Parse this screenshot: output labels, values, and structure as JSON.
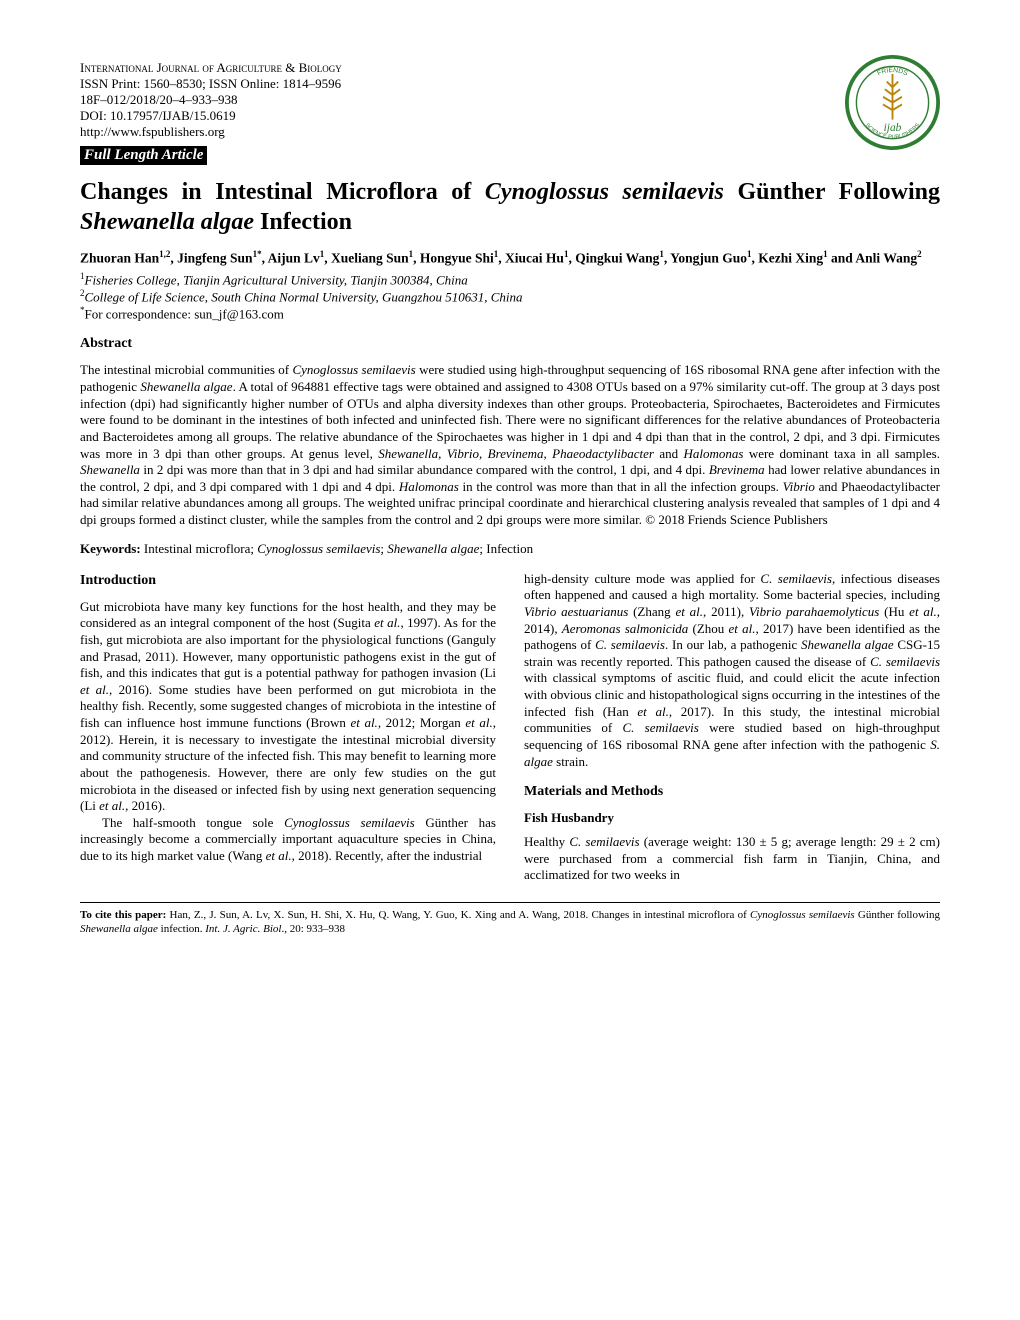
{
  "header": {
    "journal_name": "International Journal of Agriculture & Biology",
    "issn_line": "ISSN Print: 1560–8530; ISSN Online: 1814–9596",
    "code_line": "18F–012/2018/20–4–933–938",
    "doi_line": "DOI: 10.17957/IJAB/15.0619",
    "url_line": "http://www.fspublishers.org",
    "article_type": "Full Length Article",
    "logo_colors": {
      "outer_ring": "#2e7d32",
      "inner_bg": "#ffffff",
      "wheat": "#b8860b",
      "text": "#2e7d32"
    }
  },
  "title": {
    "pre": "Changes in Intestinal Microflora of ",
    "it1": "Cynoglossus semilaevis",
    "mid": " Günther Following ",
    "it2": "Shewanella algae",
    "post": " Infection"
  },
  "authors_html": "Zhuoran Han<sup>1,2</sup>, Jingfeng Sun<sup>1*</sup>, Aijun Lv<sup>1</sup>, Xueliang Sun<sup>1</sup>, Hongyue Shi<sup>1</sup>, Xiucai Hu<sup>1</sup>, Qingkui Wang<sup>1</sup>, Yongjun Guo<sup>1</sup>, Kezhi Xing<sup>1</sup> and Anli Wang<sup>2</sup>",
  "affiliations": [
    {
      "sup": "1",
      "text": "Fisheries College, Tianjin Agricultural University, Tianjin 300384, China"
    },
    {
      "sup": "2",
      "text": "College of Life Science, South China Normal University, Guangzhou 510631, China"
    }
  ],
  "correspondence": {
    "sup": "*",
    "text": "For correspondence: sun_jf@163.com"
  },
  "abstract": {
    "heading": "Abstract",
    "text": "The intestinal microbial communities of <i>Cynoglossus semilaevis</i> were studied using high-throughput sequencing of 16S ribosomal RNA gene after infection with the pathogenic <i>Shewanella algae</i>. A total of 964881 effective tags were obtained and assigned to 4308 OTUs based on a 97% similarity cut-off. The group at 3 days post infection (dpi) had significantly higher number of OTUs and alpha diversity indexes than other groups. Proteobacteria, Spirochaetes, Bacteroidetes and Firmicutes were found to be dominant in the intestines of both infected and uninfected fish. There were no significant differences for the relative abundances of Proteobacteria and Bacteroidetes among all groups. The relative abundance of the Spirochaetes was higher in 1 dpi and 4 dpi than that in the control, 2 dpi, and 3 dpi. Firmicutes was more in 3 dpi than other groups. At genus level, <i>Shewanella, Vibrio, Brevinema, Phaeodactylibacter</i> and <i>Halomonas</i> were dominant taxa in all samples. <i>Shewanella</i> in 2 dpi was more than that in 3 dpi and had similar abundance compared with the control, 1 dpi, and 4 dpi. <i>Brevinema</i> had lower relative abundances in the control, 2 dpi, and 3 dpi compared with 1 dpi and 4 dpi. <i>Halomonas</i> in the control was more than that in all the infection groups. <i>Vibrio</i> and Phaeodactylibacter had similar relative abundances among all groups. The weighted unifrac principal coordinate and hierarchical clustering analysis revealed that samples of 1 dpi and 4 dpi groups formed a distinct cluster, while the samples from the control and 2 dpi groups were more similar. © 2018 Friends Science Publishers"
  },
  "keywords": {
    "label": "Keywords:",
    "text": " Intestinal microflora; <i>Cynoglossus semilaevis</i>; <i>Shewanella algae</i>; Infection"
  },
  "introduction": {
    "heading": "Introduction",
    "p1": "Gut microbiota have many key functions for the host health, and they may be considered as an integral component of the host (Sugita <i>et al.</i>, 1997). As for the fish, gut microbiota are also important for the physiological functions (Ganguly and Prasad, 2011). However, many opportunistic pathogens exist in the gut of fish, and this indicates that gut is a potential pathway for pathogen invasion (Li <i>et al.</i>, 2016). Some studies have been performed on gut microbiota in the healthy fish. Recently, some suggested changes of microbiota in the intestine of fish can influence host immune functions (Brown <i>et al.</i>, 2012; Morgan <i>et al.</i>, 2012). Herein, it is necessary to investigate the intestinal microbial diversity and community structure of the infected fish. This may benefit to learning more about the pathogenesis. However, there are only few studies on the gut microbiota in the diseased or infected fish by using next generation sequencing (Li <i>et al.</i>, 2016).",
    "p2": "The half-smooth tongue sole <i>Cynoglossus semilaevis</i> Günther has increasingly become a commercially important aquaculture species in China, due to its high market value (Wang <i>et al.</i>, 2018). Recently, after the industrial",
    "p3": "high-density culture mode was applied for <i>C. semilaevis</i>, infectious diseases often happened and caused a high mortality. Some bacterial species, including <i>Vibrio aestuarianus</i> (Zhang <i>et al.</i>, 2011), <i>Vibrio parahaemolyticus</i> (Hu <i>et al.</i>, 2014), <i>Aeromonas salmonicida</i> (Zhou <i>et al.</i>, 2017) have been identified as the pathogens of <i>C. semilaevis</i>. In our lab, a pathogenic <i>Shewanella algae</i> CSG-15 strain was recently reported. This pathogen caused the disease of <i>C. semilaevis</i> with classical symptoms of ascitic fluid, and could elicit the acute infection with obvious clinic and histopathological signs occurring in the intestines of the infected fish (Han <i>et al.</i>, 2017). In this study, the intestinal microbial communities of <i>C. semilaevis</i> were studied based on high-throughput sequencing of 16S ribosomal RNA gene after infection with the pathogenic <i>S. algae</i> strain."
  },
  "methods": {
    "heading": "Materials and Methods",
    "subheading": "Fish Husbandry",
    "p1": "Healthy <i>C. semilaevis</i> (average weight: 130 ± 5 g; average length: 29 ± 2 cm) were purchased from a commercial fish farm in Tianjin, China, and acclimatized for two weeks in"
  },
  "footer": {
    "label": "To cite this paper:",
    "text": " Han, Z., J. Sun, A. Lv, X. Sun, H. Shi, X. Hu, Q. Wang, Y. Guo, K. Xing and A. Wang, 2018. Changes in intestinal microflora of <i>Cynoglossus semilaevis</i> Günther following <i>Shewanella algae</i> infection. <i>Int. J. Agric. Biol</i>., 20: 933‒938"
  }
}
